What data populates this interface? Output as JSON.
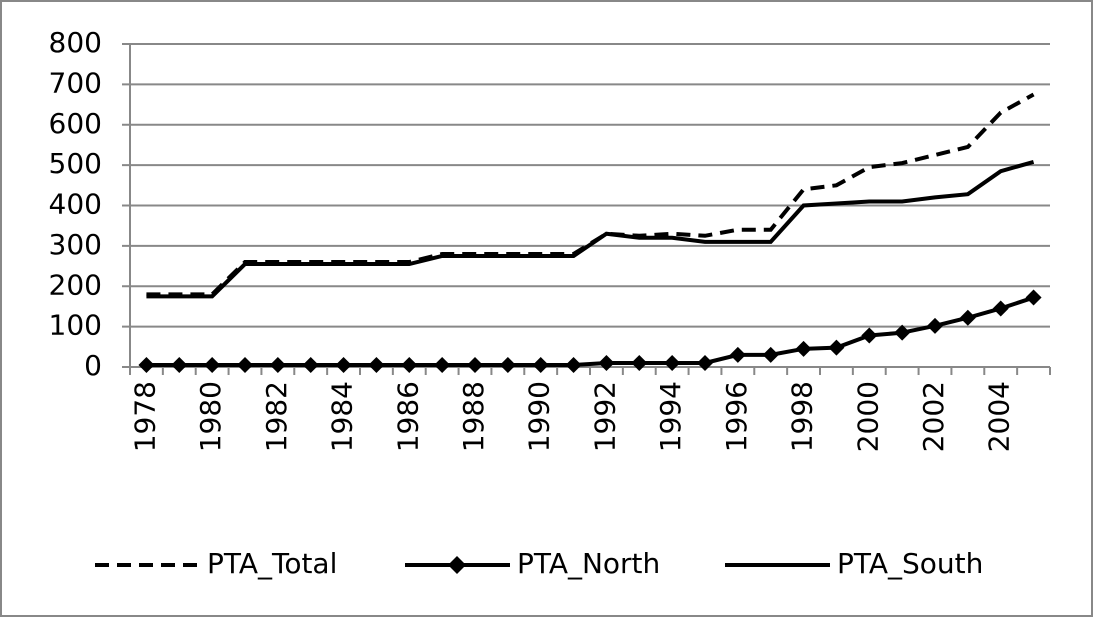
{
  "chart_data": {
    "type": "line",
    "categories": [
      "1978",
      null,
      "1980",
      null,
      "1982",
      null,
      "1984",
      null,
      "1986",
      null,
      "1988",
      null,
      "1990",
      null,
      "1992",
      null,
      "1994",
      null,
      "1996",
      null,
      "1998",
      null,
      "2000",
      null,
      "2002",
      null,
      "2004",
      null
    ],
    "series": [
      {
        "name": "PTA_Total",
        "color": "#000000",
        "dashed": true,
        "marker": null,
        "values": [
          180,
          180,
          180,
          260,
          260,
          260,
          260,
          260,
          260,
          280,
          280,
          280,
          280,
          280,
          330,
          325,
          330,
          325,
          340,
          340,
          440,
          450,
          495,
          505,
          525,
          545,
          630,
          675
        ]
      },
      {
        "name": "PTA_North",
        "color": "#000000",
        "dashed": false,
        "marker": "diamond",
        "values": [
          5,
          5,
          5,
          5,
          5,
          5,
          5,
          5,
          5,
          5,
          5,
          5,
          5,
          5,
          10,
          10,
          10,
          10,
          30,
          30,
          45,
          48,
          78,
          85,
          102,
          122,
          145,
          172
        ]
      },
      {
        "name": "PTA_South",
        "color": "#000000",
        "dashed": false,
        "marker": null,
        "values": [
          175,
          175,
          175,
          255,
          255,
          255,
          255,
          255,
          255,
          275,
          275,
          275,
          275,
          275,
          330,
          320,
          320,
          310,
          310,
          310,
          400,
          405,
          410,
          410,
          420,
          428,
          485,
          508
        ]
      }
    ],
    "ylim": [
      0,
      800
    ],
    "yticks": [
      0,
      100,
      200,
      300,
      400,
      500,
      600,
      700,
      800
    ],
    "grid": true,
    "legend": "bottom"
  }
}
